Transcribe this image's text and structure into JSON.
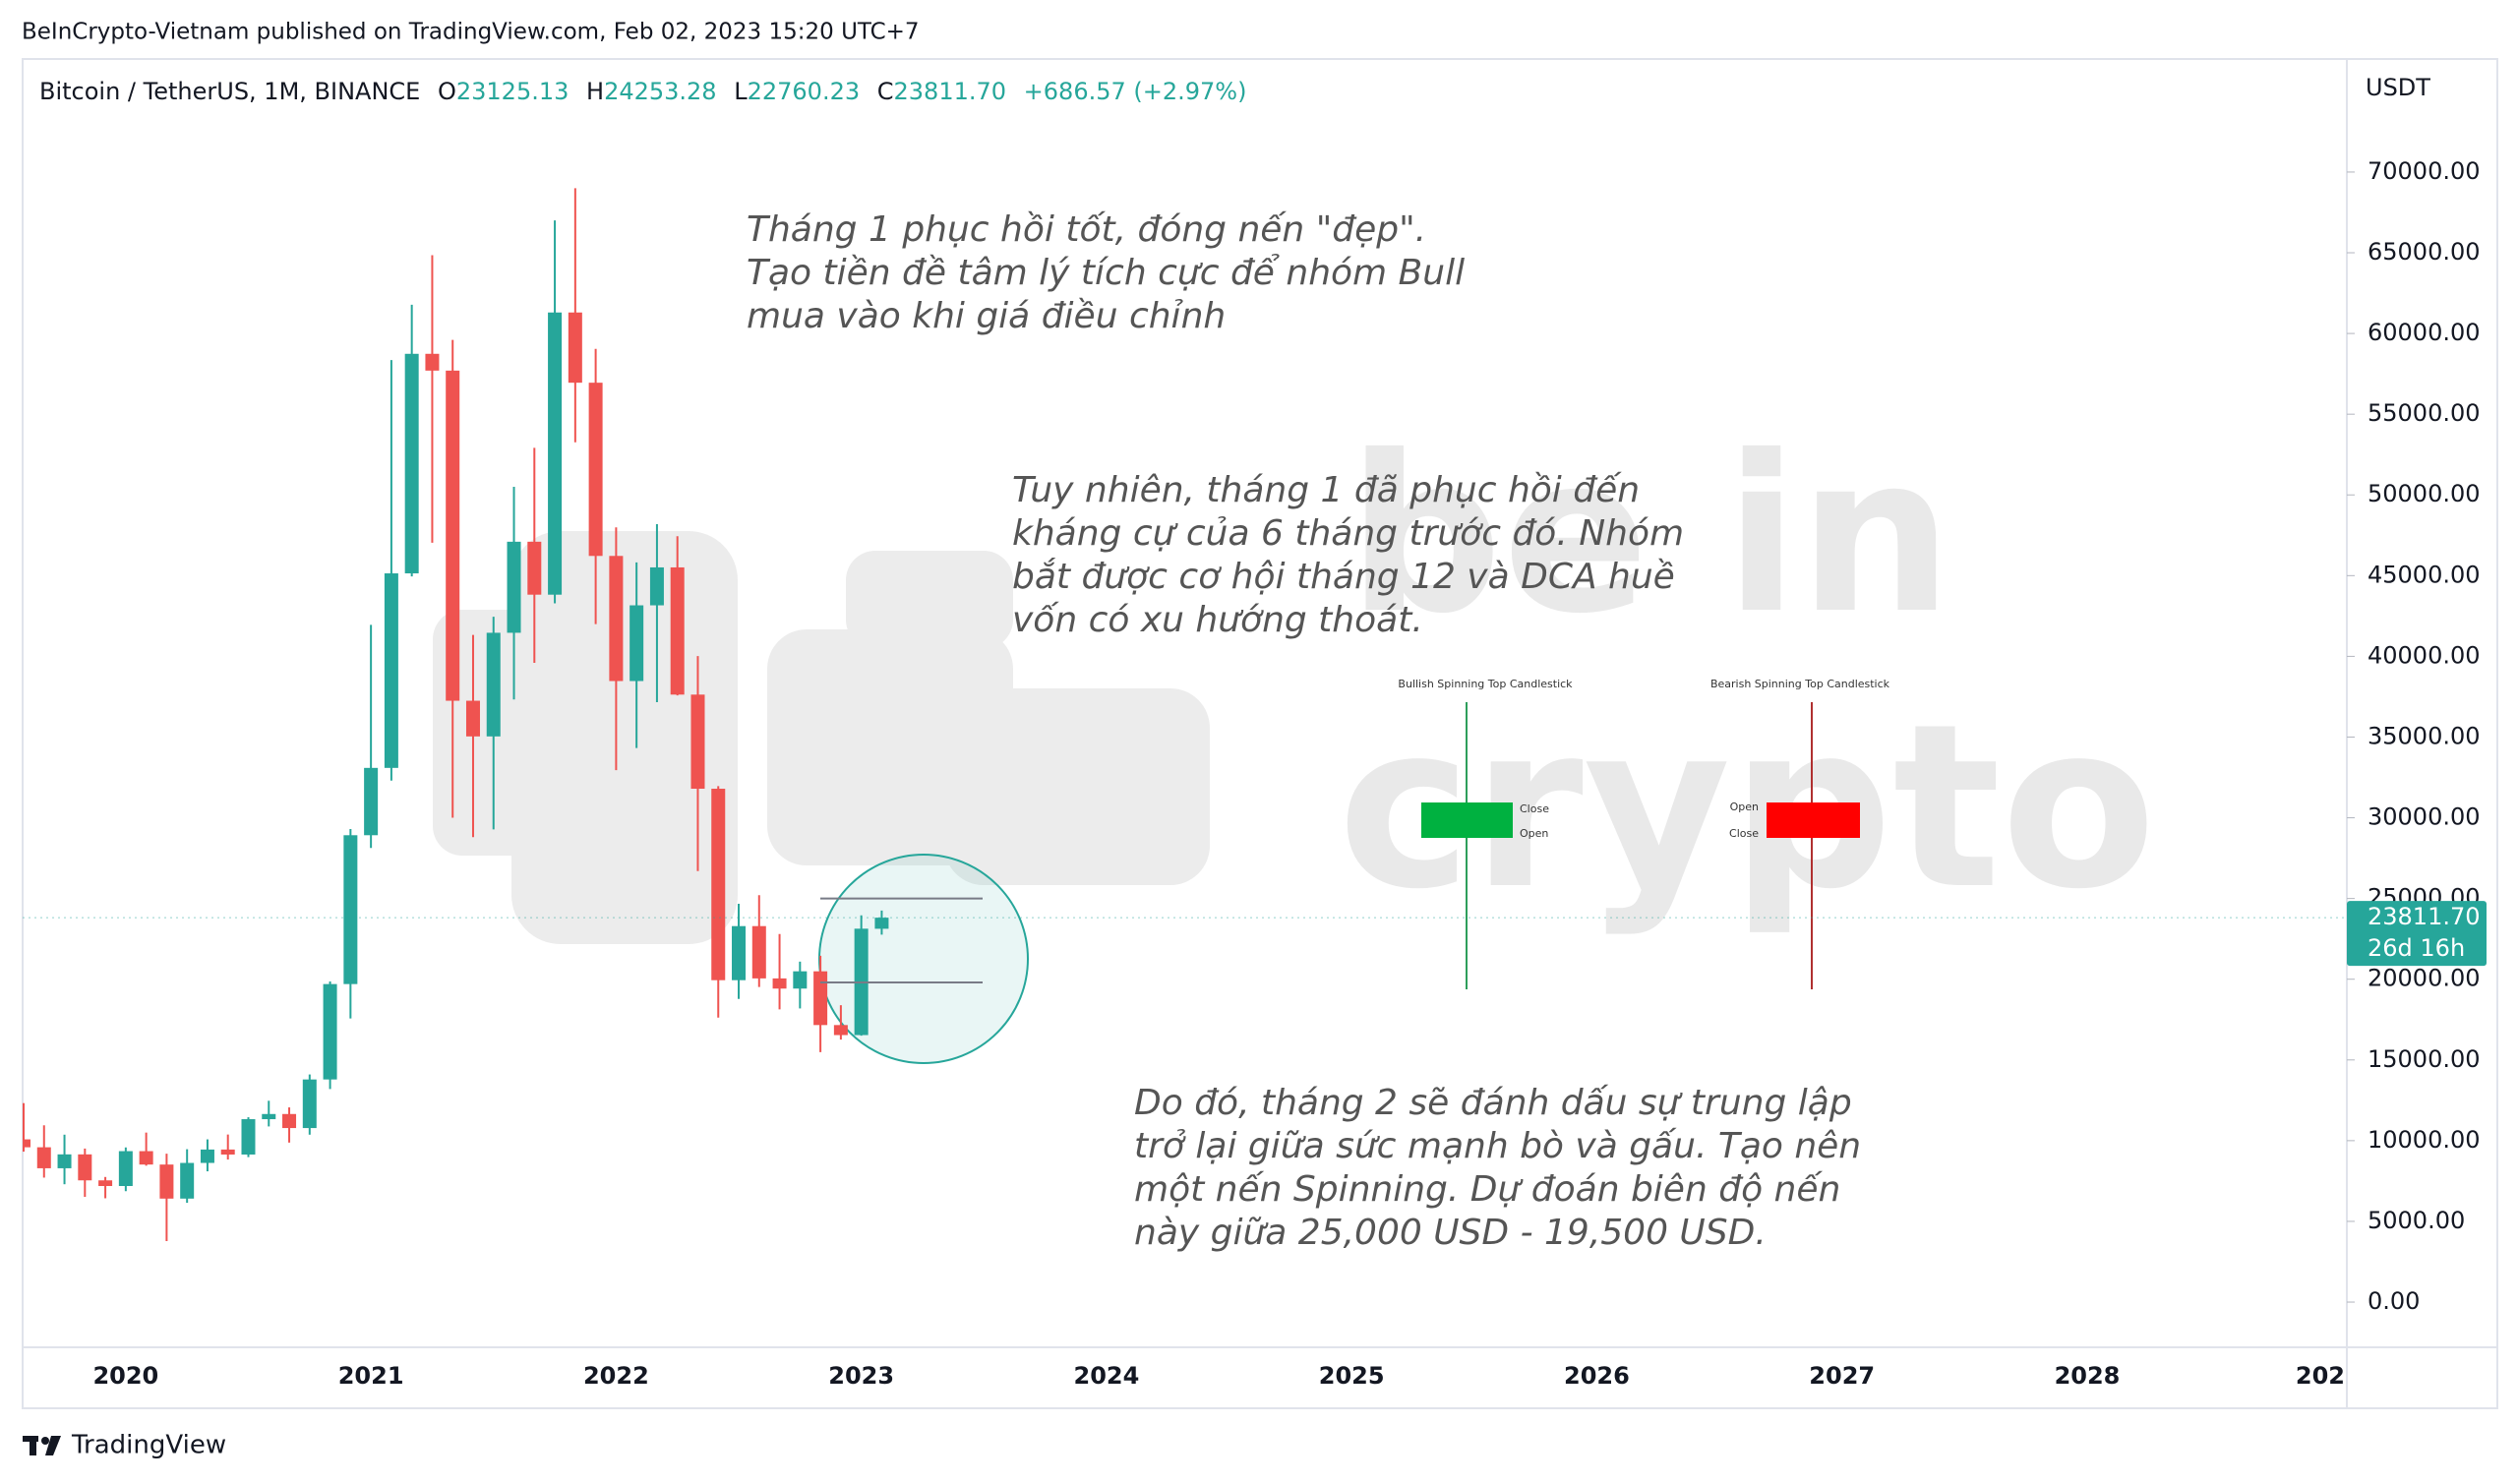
{
  "header": "BeInCrypto-Vietnam published on TradingView.com, Feb 02, 2023 15:20 UTC+7",
  "legend": {
    "symbol": "Bitcoin / TetherUS, 1M, BINANCE",
    "o_label": "O",
    "o": "23125.13",
    "h_label": "H",
    "h": "24253.28",
    "l_label": "L",
    "l": "22760.23",
    "c_label": "C",
    "c": "23811.70",
    "change": "+686.57 (+2.97%)"
  },
  "currency": "USDT",
  "price_tag": {
    "price": "23811.70",
    "countdown": "26d 16h"
  },
  "annotations": [
    [
      "Tháng 1 phục hồi tốt, đóng nến \"đẹp\".",
      "Tạo tiền đề tâm lý tích cực để nhóm Bull",
      "mua vào khi giá điều chỉnh"
    ],
    [
      "Tuy nhiên, tháng 1 đã phục hồi đến",
      "kháng cự của 6 tháng trước đó. Nhóm",
      "bắt được cơ hội tháng 12 và DCA huề",
      "vốn có xu hướng thoát."
    ],
    [
      "Do đó, tháng 2 sẽ đánh dấu sự trung lập",
      "trở lại giữa sức mạnh bò và gấu. Tạo nên",
      "một nến Spinning. Dự đoán biên độ nến",
      "này giữa 25,000 USD - 19,500 USD."
    ]
  ],
  "insets": {
    "bullish_title": "Bullish Spinning Top Candlestick",
    "bullish_top": "Close",
    "bullish_bottom": "Open",
    "bearish_title": "Bearish Spinning Top Candlestick",
    "bearish_top": "Open",
    "bearish_bottom": "Close"
  },
  "watermark": [
    "be in",
    "crypto"
  ],
  "brand": "TradingView",
  "chart_data": {
    "type": "candlestick",
    "x": [
      "2019-08",
      "2019-09",
      "2019-10",
      "2019-11",
      "2019-12",
      "2020-01",
      "2020-02",
      "2020-03",
      "2020-04",
      "2020-05",
      "2020-06",
      "2020-07",
      "2020-08",
      "2020-09",
      "2020-10",
      "2020-11",
      "2020-12",
      "2021-01",
      "2021-02",
      "2021-03",
      "2021-04",
      "2021-05",
      "2021-06",
      "2021-07",
      "2021-08",
      "2021-09",
      "2021-10",
      "2021-11",
      "2021-12",
      "2022-01",
      "2022-02",
      "2022-03",
      "2022-04",
      "2022-05",
      "2022-06",
      "2022-07",
      "2022-08",
      "2022-09",
      "2022-10",
      "2022-11",
      "2022-12",
      "2023-01",
      "2023-02"
    ],
    "open": [
      10080,
      9590,
      8290,
      9150,
      7540,
      7190,
      9350,
      8520,
      6410,
      8620,
      9450,
      9140,
      11330,
      11650,
      10780,
      13790,
      19700,
      28920,
      33090,
      45140,
      58740,
      57700,
      37250,
      35040,
      41460,
      47100,
      43820,
      61300,
      56950,
      46220,
      38470,
      43160,
      45510,
      37630,
      31800,
      19940,
      23290,
      20050,
      19420,
      20490,
      17160,
      16540,
      23125.13
    ],
    "high": [
      12325,
      10950,
      10370,
      9510,
      7750,
      9580,
      10500,
      9190,
      9470,
      10080,
      10380,
      11450,
      12470,
      12060,
      14100,
      19860,
      29300,
      41950,
      58350,
      61780,
      64850,
      59600,
      41330,
      42450,
      50500,
      52920,
      67000,
      69000,
      59050,
      47990,
      45820,
      48190,
      47440,
      40020,
      31960,
      24670,
      25210,
      22800,
      21090,
      21450,
      18390,
      23960,
      24253.28
    ],
    "low": [
      9320,
      7710,
      7300,
      6520,
      6430,
      6870,
      8450,
      3780,
      6150,
      8100,
      8830,
      8980,
      10880,
      9880,
      10370,
      13200,
      17570,
      28130,
      32300,
      44950,
      47040,
      30000,
      28800,
      29280,
      37330,
      39600,
      43280,
      53260,
      42000,
      32950,
      34320,
      37160,
      37580,
      26700,
      17620,
      18780,
      19520,
      18130,
      18190,
      15480,
      16260,
      16500,
      22760.23
    ],
    "close": [
      9590,
      8290,
      9150,
      7540,
      7190,
      9350,
      8520,
      6410,
      8620,
      9450,
      9140,
      11330,
      11650,
      10780,
      13790,
      19700,
      28920,
      33090,
      45140,
      58740,
      57700,
      37250,
      35040,
      41460,
      47100,
      43820,
      61300,
      56950,
      46220,
      38470,
      43160,
      45510,
      37630,
      31800,
      19940,
      23290,
      20050,
      19420,
      20490,
      17160,
      16540,
      23130,
      23811.7
    ],
    "up_color": "#26a69a",
    "down_color": "#ef5350",
    "levels": [
      25000,
      19800
    ],
    "xlim": [
      "2019-08",
      "2029-02"
    ],
    "xticks": [
      {
        "value": "2020-01",
        "label": "2020"
      },
      {
        "value": "2021-01",
        "label": "2021"
      },
      {
        "value": "2022-01",
        "label": "2022"
      },
      {
        "value": "2023-01",
        "label": "2023"
      },
      {
        "value": "2024-01",
        "label": "2024"
      },
      {
        "value": "2025-01",
        "label": "2025"
      },
      {
        "value": "2026-01",
        "label": "2026"
      },
      {
        "value": "2027-01",
        "label": "2027"
      },
      {
        "value": "2028-01",
        "label": "2028"
      },
      {
        "value": "2029-01",
        "label": "202"
      }
    ],
    "ylim": [
      -2740,
      76880
    ],
    "yticks": [
      {
        "value": 0,
        "label": "0.00"
      },
      {
        "value": 5000,
        "label": "5000.00"
      },
      {
        "value": 10000,
        "label": "10000.00"
      },
      {
        "value": 15000,
        "label": "15000.00"
      },
      {
        "value": 20000,
        "label": "20000.00"
      },
      {
        "value": 25000,
        "label": "25000.00"
      },
      {
        "value": 30000,
        "label": "30000.00"
      },
      {
        "value": 35000,
        "label": "35000.00"
      },
      {
        "value": 40000,
        "label": "40000.00"
      },
      {
        "value": 45000,
        "label": "45000.00"
      },
      {
        "value": 50000,
        "label": "50000.00"
      },
      {
        "value": 55000,
        "label": "55000.00"
      },
      {
        "value": 60000,
        "label": "60000.00"
      },
      {
        "value": 65000,
        "label": "65000.00"
      },
      {
        "value": 70000,
        "label": "70000.00"
      }
    ],
    "grid": false
  }
}
